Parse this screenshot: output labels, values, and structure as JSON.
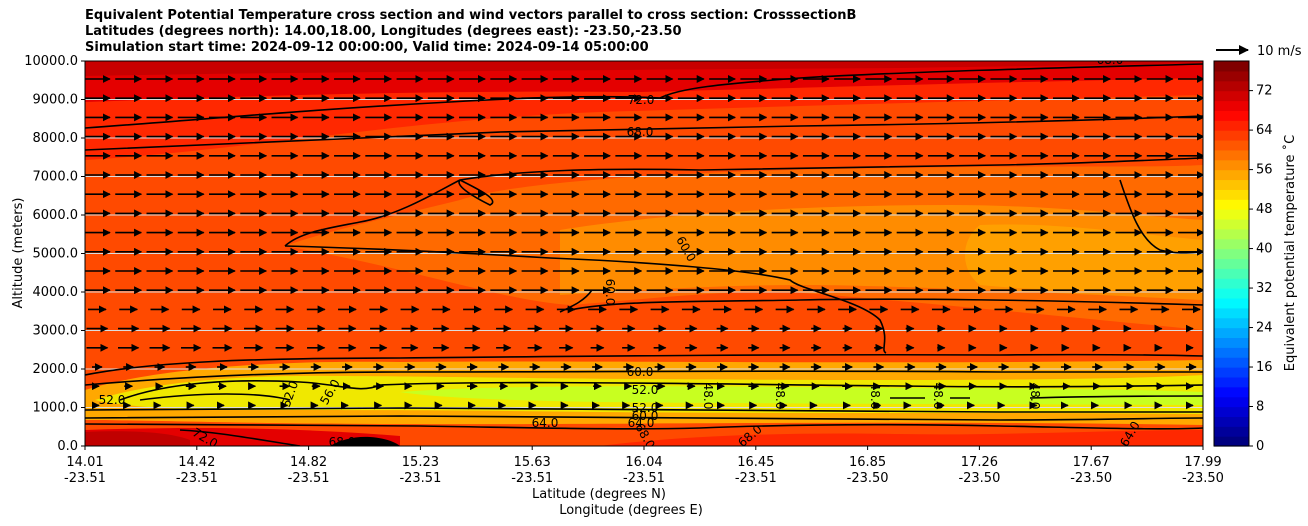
{
  "chart_data": {
    "type": "contour",
    "title": [
      "Equivalent Potential Temperature cross section and wind vectors parallel to cross section: CrosssectionB",
      "Latitudes (degrees north): 14.00,18.00, Longitudes (degrees east): -23.50,-23.50",
      "Simulation start time: 2024-09-12 00:00:00, Valid time: 2024-09-14 05:00:00"
    ],
    "ylabel": "Altitude (meters)",
    "xlabel_lat": "Latitude (degrees N)",
    "xlabel_lon": "Longitude (degrees E)",
    "ylim": [
      0,
      10000
    ],
    "yticks": [
      "0.0",
      "1000.0",
      "2000.0",
      "3000.0",
      "4000.0",
      "5000.0",
      "6000.0",
      "7000.0",
      "8000.0",
      "9000.0",
      "10000.0"
    ],
    "xticks_lat": [
      "14.01",
      "14.42",
      "14.82",
      "15.23",
      "15.63",
      "16.04",
      "16.45",
      "16.85",
      "17.26",
      "17.67",
      "17.99"
    ],
    "xticks_lon": [
      "-23.51",
      "-23.51",
      "-23.51",
      "-23.51",
      "-23.51",
      "-23.51",
      "-23.51",
      "-23.50",
      "-23.50",
      "-23.50",
      "-23.50"
    ],
    "colorbar_label": "Equivalent potential temperature $^\\circ$C",
    "colorbar_label_text": "Equivalent potential temperature ˚C",
    "colorbar_ticks": [
      "0",
      "8",
      "16",
      "24",
      "32",
      "40",
      "48",
      "56",
      "64",
      "72"
    ],
    "colorbar_range": [
      0,
      78
    ],
    "quiver_key": "10 m/s",
    "contour_labels": [
      "72.0",
      "68.0",
      "60.0",
      "60.0",
      "60.0",
      "52.0",
      "52.0",
      "52.0",
      "56.0",
      "52.0",
      "60.0",
      "64.0",
      "64.0",
      "68.0",
      "48.0",
      "48.0",
      "48.0",
      "48.0",
      "48.0",
      "68.0",
      "72.0",
      "68.0",
      "64.0",
      "68.0"
    ],
    "grid": "horizontal"
  }
}
